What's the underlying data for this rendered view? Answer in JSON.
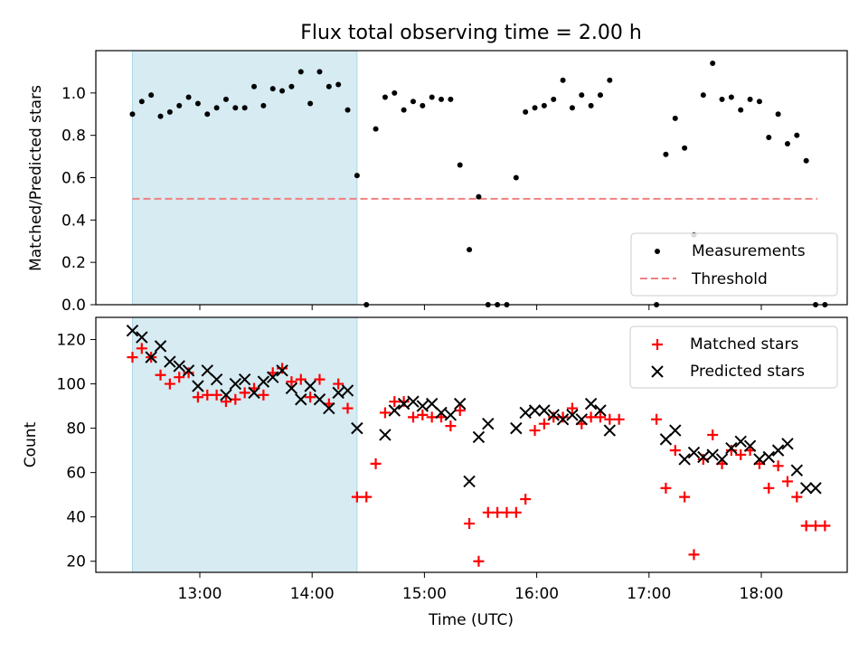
{
  "figure": {
    "title": "Flux total observing time = 2.00 h",
    "shaded_span": [
      "12:24",
      "14:24"
    ],
    "shade_color": "#add8e6"
  },
  "chart_data": [
    {
      "type": "scatter",
      "panel": "top",
      "ylabel": "Matched/Predicted stars",
      "ylim": [
        0,
        1.2
      ],
      "yticks": [
        0.0,
        0.2,
        0.4,
        0.6,
        0.8,
        1.0
      ],
      "ytick_labels": [
        "0.0",
        "0.2",
        "0.4",
        "0.6",
        "0.8",
        "1.0"
      ],
      "legend_position": "lower-right",
      "series": [
        {
          "name": "Measurements",
          "color": "#000000",
          "marker": "dot",
          "x": [
            "12:24",
            "12:29",
            "12:34",
            "12:39",
            "12:44",
            "12:49",
            "12:54",
            "12:59",
            "13:04",
            "13:09",
            "13:14",
            "13:19",
            "13:24",
            "13:29",
            "13:34",
            "13:39",
            "13:44",
            "13:49",
            "13:54",
            "13:59",
            "14:04",
            "14:09",
            "14:14",
            "14:19",
            "14:24",
            "14:29",
            "14:34",
            "14:39",
            "14:44",
            "14:49",
            "14:54",
            "14:59",
            "15:04",
            "15:09",
            "15:14",
            "15:19",
            "15:24",
            "15:29",
            "15:34",
            "15:39",
            "15:44",
            "15:49",
            "15:54",
            "15:59",
            "16:04",
            "16:09",
            "16:14",
            "16:19",
            "16:24",
            "16:29",
            "16:34",
            "16:39",
            "17:04",
            "17:09",
            "17:14",
            "17:19",
            "17:24",
            "17:29",
            "17:34",
            "17:39",
            "17:44",
            "17:49",
            "17:54",
            "17:59",
            "18:04",
            "18:09",
            "18:14",
            "18:19",
            "18:24",
            "18:29",
            "18:34"
          ],
          "y": [
            0.9,
            0.96,
            0.99,
            0.89,
            0.91,
            0.94,
            0.98,
            0.95,
            0.9,
            0.93,
            0.97,
            0.93,
            0.93,
            1.03,
            0.94,
            1.02,
            1.01,
            1.03,
            1.1,
            0.95,
            1.1,
            1.03,
            1.04,
            0.92,
            0.61,
            0.0,
            0.83,
            0.98,
            1.0,
            0.92,
            0.96,
            0.94,
            0.98,
            0.97,
            0.97,
            0.66,
            0.26,
            0.51,
            0.0,
            0.0,
            0.0,
            0.6,
            0.91,
            0.93,
            0.94,
            0.97,
            1.06,
            0.93,
            0.99,
            0.94,
            0.99,
            1.06,
            0.0,
            0.71,
            0.88,
            0.74,
            0.33,
            0.99,
            1.14,
            0.97,
            0.98,
            0.92,
            0.97,
            0.96,
            0.79,
            0.9,
            0.76,
            0.8,
            0.68,
            0.0,
            0.0
          ]
        },
        {
          "name": "Threshold",
          "color": "#f08080",
          "style": "dashed",
          "x": [
            "12:24",
            "18:30"
          ],
          "y": [
            0.5,
            0.5
          ]
        }
      ]
    },
    {
      "type": "scatter",
      "panel": "bottom",
      "xlabel": "Time (UTC)",
      "ylabel": "Count",
      "ylim": [
        15,
        130
      ],
      "yticks": [
        20,
        40,
        60,
        80,
        100,
        120
      ],
      "xticks": [
        "13:00",
        "14:00",
        "15:00",
        "16:00",
        "17:00",
        "18:00"
      ],
      "legend_position": "upper-right",
      "series": [
        {
          "name": "Matched stars",
          "color": "#ff0000",
          "marker": "plus",
          "x": [
            "12:24",
            "12:29",
            "12:34",
            "12:39",
            "12:44",
            "12:49",
            "12:54",
            "12:59",
            "13:04",
            "13:09",
            "13:14",
            "13:19",
            "13:24",
            "13:29",
            "13:34",
            "13:39",
            "13:44",
            "13:49",
            "13:54",
            "13:59",
            "14:04",
            "14:09",
            "14:14",
            "14:19",
            "14:24",
            "14:29",
            "14:34",
            "14:39",
            "14:44",
            "14:49",
            "14:54",
            "14:59",
            "15:04",
            "15:09",
            "15:14",
            "15:19",
            "15:24",
            "15:29",
            "15:34",
            "15:39",
            "15:44",
            "15:49",
            "15:54",
            "15:59",
            "16:04",
            "16:09",
            "16:14",
            "16:19",
            "16:24",
            "16:29",
            "16:34",
            "16:39",
            "16:44",
            "17:04",
            "17:09",
            "17:14",
            "17:19",
            "17:24",
            "17:29",
            "17:34",
            "17:39",
            "17:44",
            "17:49",
            "17:54",
            "17:59",
            "18:04",
            "18:09",
            "18:14",
            "18:19",
            "18:24",
            "18:29",
            "18:34"
          ],
          "y": [
            112,
            116,
            112,
            104,
            100,
            103,
            105,
            94,
            95,
            95,
            92,
            93,
            96,
            98,
            95,
            105,
            107,
            101,
            102,
            94,
            102,
            91,
            100,
            89,
            49,
            49,
            64,
            87,
            92,
            92,
            85,
            86,
            85,
            85,
            81,
            88,
            37,
            20,
            42,
            42,
            42,
            42,
            48,
            79,
            82,
            85,
            85,
            89,
            82,
            85,
            85,
            84,
            84,
            84,
            53,
            70,
            49,
            23,
            66,
            77,
            64,
            70,
            68,
            70,
            64,
            53,
            63,
            56,
            49,
            36,
            36,
            36
          ]
        },
        {
          "name": "Predicted stars",
          "color": "#000000",
          "marker": "x",
          "x": [
            "12:24",
            "12:29",
            "12:34",
            "12:39",
            "12:44",
            "12:49",
            "12:54",
            "12:59",
            "13:04",
            "13:09",
            "13:14",
            "13:19",
            "13:24",
            "13:29",
            "13:34",
            "13:39",
            "13:44",
            "13:49",
            "13:54",
            "13:59",
            "14:04",
            "14:09",
            "14:14",
            "14:19",
            "14:24",
            "14:39",
            "14:44",
            "14:49",
            "14:54",
            "14:59",
            "15:04",
            "15:09",
            "15:14",
            "15:19",
            "15:24",
            "15:29",
            "15:34",
            "15:49",
            "15:54",
            "15:59",
            "16:04",
            "16:09",
            "16:14",
            "16:19",
            "16:24",
            "16:29",
            "16:34",
            "16:39",
            "17:09",
            "17:14",
            "17:19",
            "17:24",
            "17:29",
            "17:34",
            "17:39",
            "17:44",
            "17:49",
            "17:54",
            "17:59",
            "18:04",
            "18:09",
            "18:14",
            "18:19",
            "18:24",
            "18:29"
          ],
          "y": [
            124,
            121,
            112,
            117,
            110,
            108,
            106,
            99,
            106,
            102,
            95,
            100,
            102,
            96,
            101,
            103,
            106,
            98,
            93,
            99,
            93,
            89,
            96,
            97,
            80,
            77,
            88,
            91,
            92,
            90,
            91,
            87,
            86,
            91,
            56,
            76,
            82,
            80,
            87,
            88,
            88,
            86,
            84,
            86,
            84,
            91,
            88,
            79,
            75,
            79,
            66,
            69,
            67,
            68,
            66,
            71,
            74,
            72,
            66,
            67,
            70,
            73,
            61,
            53,
            53
          ]
        }
      ]
    }
  ]
}
